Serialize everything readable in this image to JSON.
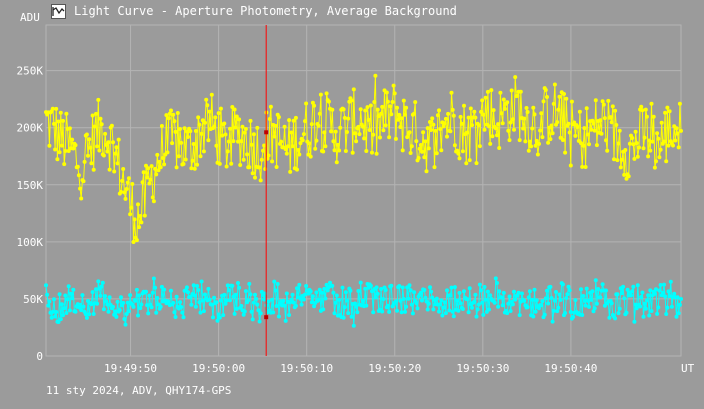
{
  "window": {
    "title": "Light Curve - Aperture Photometry, Average Background",
    "icon": "app-icon"
  },
  "footer": {
    "text": "11 sty 2024, ADV, QHY174-GPS"
  },
  "colors": {
    "background": "#9b9b9b",
    "grid": "#b4b4b4",
    "series_1": "#ffff00",
    "series_2": "#00ffff",
    "cursor": "#ff0000"
  },
  "chart_data": {
    "type": "line",
    "title": "",
    "xlabel": "UT",
    "ylabel": "ADU",
    "x_unit_label": "UT",
    "y_unit_label": "ADU",
    "ylim": [
      0,
      290000
    ],
    "xlim": [
      "19:49:40.4",
      "19:50:52.5"
    ],
    "grid": true,
    "legend": "none",
    "y_ticks": [
      {
        "value": 0,
        "label": "0"
      },
      {
        "value": 50000,
        "label": "50K"
      },
      {
        "value": 100000,
        "label": "100K"
      },
      {
        "value": 150000,
        "label": "150K"
      },
      {
        "value": 200000,
        "label": "200K"
      },
      {
        "value": 250000,
        "label": "250K"
      }
    ],
    "x_ticks": [
      {
        "value": "19:49:50",
        "label": "19:49:50"
      },
      {
        "value": "19:50:00",
        "label": "19:50:00"
      },
      {
        "value": "19:50:10",
        "label": "19:50:10"
      },
      {
        "value": "19:50:20",
        "label": "19:50:20"
      },
      {
        "value": "19:50:30",
        "label": "19:50:30"
      },
      {
        "value": "19:50:40",
        "label": "19:50:40"
      }
    ],
    "cursor": {
      "x": "19:50:05.4",
      "values": [
        196000,
        34000
      ]
    },
    "series": [
      {
        "color": "#ffff00",
        "x_start": "19:49:40.4",
        "x_end": "19:50:52.5",
        "sample_values": [
          205000,
          200000,
          190000,
          185000,
          175000,
          165000,
          180000,
          195000,
          200000,
          190000,
          170000,
          150000,
          130000,
          120000,
          140000,
          160000,
          175000,
          185000,
          190000,
          185000,
          180000,
          190000,
          200000,
          205000,
          195000,
          185000,
          190000,
          195000,
          190000,
          185000,
          180000,
          190000,
          195000,
          185000,
          180000,
          190000,
          195000,
          200000,
          210000,
          205000,
          200000,
          195000,
          200000,
          205000,
          210000,
          200000,
          195000,
          205000,
          210000,
          215000,
          205000,
          200000,
          195000,
          190000,
          185000,
          195000,
          205000,
          210000,
          200000,
          195000,
          200000,
          210000,
          215000,
          205000,
          210000,
          215000,
          220000,
          210000,
          205000,
          200000,
          210000,
          215000,
          210000,
          200000,
          195000,
          190000,
          195000,
          200000,
          205000,
          200000,
          190000,
          185000,
          180000,
          190000,
          195000,
          190000,
          185000,
          195000,
          200000,
          195000
        ]
      },
      {
        "color": "#00ffff",
        "x_start": "19:49:40.4",
        "x_end": "19:50:52.5",
        "sample_values": [
          50000,
          45000,
          42000,
          48000,
          52000,
          47000,
          44000,
          50000,
          55000,
          48000,
          42000,
          40000,
          45000,
          50000,
          48000,
          46000,
          50000,
          52000,
          48000,
          45000,
          47000,
          50000,
          53000,
          48000,
          44000,
          46000,
          50000,
          52000,
          49000,
          45000,
          43000,
          48000,
          52000,
          46000,
          42000,
          50000,
          55000,
          52000,
          48000,
          50000,
          53000,
          49000,
          46000,
          48000,
          51000,
          50000,
          47000,
          45000,
          49000,
          52000,
          50000,
          48000,
          46000,
          50000,
          53000,
          49000,
          45000,
          48000,
          52000,
          50000,
          47000,
          49000,
          52000,
          55000,
          50000,
          46000,
          48000,
          51000,
          49000,
          47000,
          45000,
          49000,
          52000,
          48000,
          44000,
          46000,
          50000,
          53000,
          50000,
          47000,
          45000,
          48000,
          51000,
          49000,
          46000,
          48000,
          52000,
          50000,
          47000,
          49000
        ]
      }
    ]
  }
}
